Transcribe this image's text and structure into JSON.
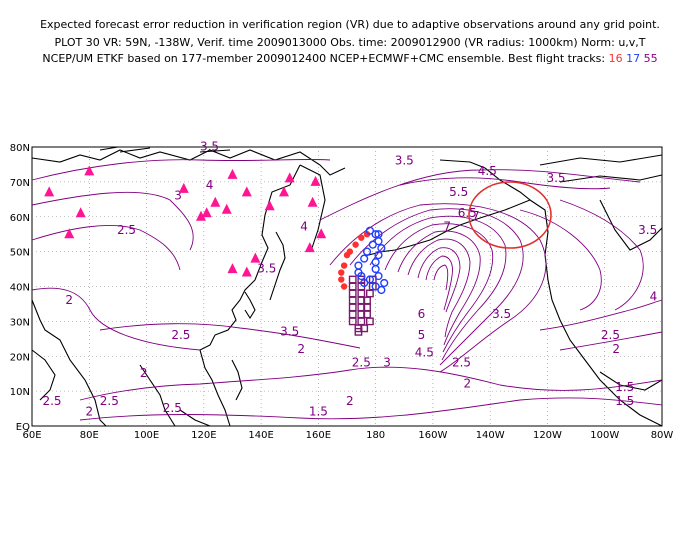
{
  "header": {
    "line1": "Expected forecast error reduction in verification region (VR) due to adaptive observations around any grid point.",
    "line2": "PLOT 30 VR: 59N, -138W, Verif. time 2009013000 Obs. time: 2009012900 (VR radius: 1000km) Norm: u,v,T",
    "line3_prefix": "NCEP/UM ETKF based on 177-member 2009012400 NCEP+ECMWF+CMC ensemble. Best flight tracks:",
    "tracks": [
      "16",
      "17",
      "55"
    ]
  },
  "axes": {
    "x_labels": [
      "60E",
      "80E",
      "100E",
      "120E",
      "140E",
      "160E",
      "180",
      "160W",
      "140W",
      "120W",
      "100W",
      "80W"
    ],
    "y_labels": [
      "EQ",
      "10N",
      "20N",
      "30N",
      "40N",
      "50N",
      "60N",
      "70N",
      "80N"
    ]
  },
  "contour_labels": [
    {
      "text": "3.5",
      "lon": 122,
      "lat": 79
    },
    {
      "text": "3.5",
      "lon": 190,
      "lat": 75
    },
    {
      "text": "4.5",
      "lon": 219,
      "lat": 72
    },
    {
      "text": "3.5",
      "lon": 243,
      "lat": 70
    },
    {
      "text": "3",
      "lon": 111,
      "lat": 65
    },
    {
      "text": "4",
      "lon": 122,
      "lat": 68
    },
    {
      "text": "4",
      "lon": 155,
      "lat": 56
    },
    {
      "text": "5.5",
      "lon": 209,
      "lat": 66
    },
    {
      "text": "6.5",
      "lon": 212,
      "lat": 60
    },
    {
      "text": "7",
      "lon": 215,
      "lat": 59
    },
    {
      "text": "7",
      "lon": 205,
      "lat": 56
    },
    {
      "text": "2.5",
      "lon": 93,
      "lat": 55
    },
    {
      "text": "3.5",
      "lon": 275,
      "lat": 55
    },
    {
      "text": "3.5",
      "lon": 142,
      "lat": 44
    },
    {
      "text": "4",
      "lon": 277,
      "lat": 36
    },
    {
      "text": "2",
      "lon": 73,
      "lat": 35
    },
    {
      "text": "6",
      "lon": 196,
      "lat": 31
    },
    {
      "text": "5",
      "lon": 196,
      "lat": 25
    },
    {
      "text": "3.5",
      "lon": 224,
      "lat": 31
    },
    {
      "text": "3.5",
      "lon": 150,
      "lat": 26
    },
    {
      "text": "2.5",
      "lon": 112,
      "lat": 25
    },
    {
      "text": "4.5",
      "lon": 197,
      "lat": 20
    },
    {
      "text": "3",
      "lon": 184,
      "lat": 17
    },
    {
      "text": "2.5",
      "lon": 175,
      "lat": 17
    },
    {
      "text": "2.5",
      "lon": 210,
      "lat": 17
    },
    {
      "text": "2.5",
      "lon": 262,
      "lat": 25
    },
    {
      "text": "2",
      "lon": 264,
      "lat": 21
    },
    {
      "text": "2",
      "lon": 154,
      "lat": 21
    },
    {
      "text": "2",
      "lon": 99,
      "lat": 14
    },
    {
      "text": "2",
      "lon": 212,
      "lat": 11
    },
    {
      "text": "2",
      "lon": 171,
      "lat": 6
    },
    {
      "text": "1.5",
      "lon": 267,
      "lat": 10
    },
    {
      "text": "1.5",
      "lon": 267,
      "lat": 6
    },
    {
      "text": "1.5",
      "lon": 160,
      "lat": 3
    },
    {
      "text": "2.5",
      "lon": 67,
      "lat": 6
    },
    {
      "text": "2",
      "lon": 80,
      "lat": 3
    },
    {
      "text": "2.5",
      "lon": 87,
      "lat": 6
    },
    {
      "text": "2.5",
      "lon": 109,
      "lat": 4
    }
  ],
  "stations": [
    [
      66,
      67
    ],
    [
      80,
      73
    ],
    [
      73,
      55
    ],
    [
      77,
      61
    ],
    [
      113,
      68
    ],
    [
      121,
      61
    ],
    [
      124,
      64
    ],
    [
      119,
      60
    ],
    [
      130,
      72
    ],
    [
      128,
      62
    ],
    [
      135,
      67
    ],
    [
      143,
      63
    ],
    [
      150,
      71
    ],
    [
      148,
      67
    ],
    [
      159,
      70
    ],
    [
      158,
      64
    ],
    [
      161,
      55
    ],
    [
      157,
      51
    ],
    [
      138,
      48
    ],
    [
      130,
      45
    ],
    [
      135,
      44
    ]
  ],
  "verification_region": {
    "center_lat": 59,
    "center_lon": -138,
    "radius_km": 1000
  },
  "flight_tracks": {
    "16": {
      "color": "#ff3030",
      "points": [
        [
          170,
          49
        ],
        [
          169,
          46
        ],
        [
          168,
          44
        ],
        [
          168,
          42
        ],
        [
          169,
          40
        ],
        [
          171,
          50
        ],
        [
          173,
          52
        ],
        [
          175,
          54
        ],
        [
          177,
          55
        ]
      ]
    },
    "17": {
      "color": "#2040ff",
      "points": [
        [
          178,
          56
        ],
        [
          180,
          55
        ],
        [
          181,
          55
        ],
        [
          181,
          53
        ],
        [
          182,
          51
        ],
        [
          181,
          49
        ],
        [
          180,
          47
        ],
        [
          180,
          45
        ],
        [
          181,
          43
        ],
        [
          183,
          41
        ],
        [
          182,
          39
        ],
        [
          180,
          40
        ],
        [
          178,
          42
        ],
        [
          176,
          41
        ],
        [
          175,
          43
        ],
        [
          174,
          44
        ],
        [
          174,
          46
        ],
        [
          176,
          48
        ],
        [
          177,
          50
        ],
        [
          179,
          52
        ]
      ]
    },
    "55": {
      "color": "#7a1a6e",
      "points": [
        [
          172,
          42
        ],
        [
          172,
          40
        ],
        [
          172,
          38
        ],
        [
          172,
          36
        ],
        [
          172,
          34
        ],
        [
          172,
          32
        ],
        [
          172,
          30
        ],
        [
          174,
          28
        ],
        [
          174,
          27
        ],
        [
          175,
          42
        ],
        [
          175,
          40
        ],
        [
          175,
          38
        ],
        [
          175,
          36
        ],
        [
          175,
          34
        ],
        [
          175,
          32
        ],
        [
          175,
          30
        ],
        [
          176,
          28
        ],
        [
          177,
          36
        ],
        [
          177,
          34
        ],
        [
          177,
          32
        ],
        [
          178,
          30
        ],
        [
          179,
          42
        ],
        [
          179,
          40
        ],
        [
          178,
          38
        ]
      ]
    }
  },
  "colors": {
    "contour": "#800080",
    "coast": "#000000",
    "grid": "#888888",
    "station": "#ff1493"
  }
}
